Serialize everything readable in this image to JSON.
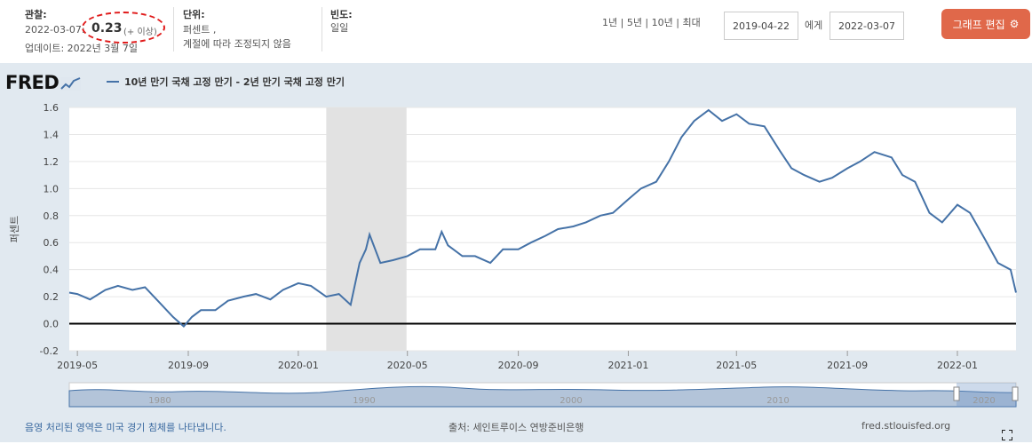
{
  "header": {
    "obs_label": "관찰:",
    "obs_date": "2022-03-07:",
    "obs_value": "0.23",
    "obs_change": "(+ 이상)",
    "updated": "업데이트: 2022년 3월 7일",
    "units_label": "단위:",
    "units_line1": "퍼센트 ,",
    "units_line2": "계절에 따라 조정되지 않음",
    "freq_label": "빈도:",
    "freq_value": "일일",
    "ranges": "1년 | 5년 | 10년 | 최대",
    "start_date": "2019-04-22",
    "to_label": "에게",
    "end_date": "2022-03-07",
    "edit_button": "그래프 편집"
  },
  "brand": "FRED",
  "footer": {
    "recession_note": "음영 처리된 영역은 미국 경기 침체를 나타냅니다.",
    "source": "출처: 세인트루이스 연방준비은행",
    "site": "fred.stlouisfed.org"
  },
  "colors": {
    "series": "#4572a7",
    "edit_button": "#e0684a",
    "recession": "#e2e2e2",
    "background": "#e1e9f0"
  },
  "chart_data": {
    "type": "line",
    "title": "",
    "series": [
      {
        "name": "10년 만기 국채 고정 만기 - 2년 만기 국채 고정 만기",
        "x": [
          "2019-04-22",
          "2019-05-01",
          "2019-05-15",
          "2019-06-01",
          "2019-06-15",
          "2019-07-01",
          "2019-07-15",
          "2019-08-01",
          "2019-08-15",
          "2019-08-27",
          "2019-09-05",
          "2019-09-15",
          "2019-10-01",
          "2019-10-15",
          "2019-11-01",
          "2019-11-15",
          "2019-12-01",
          "2019-12-15",
          "2020-01-01",
          "2020-01-15",
          "2020-02-01",
          "2020-02-15",
          "2020-02-28",
          "2020-03-09",
          "2020-03-16",
          "2020-03-20",
          "2020-04-01",
          "2020-04-15",
          "2020-05-01",
          "2020-05-15",
          "2020-06-01",
          "2020-06-08",
          "2020-06-15",
          "2020-07-01",
          "2020-07-15",
          "2020-08-01",
          "2020-08-15",
          "2020-09-01",
          "2020-09-15",
          "2020-10-01",
          "2020-10-15",
          "2020-11-01",
          "2020-11-15",
          "2020-12-01",
          "2020-12-15",
          "2021-01-01",
          "2021-01-15",
          "2021-02-01",
          "2021-02-15",
          "2021-03-01",
          "2021-03-15",
          "2021-03-31",
          "2021-04-15",
          "2021-05-01",
          "2021-05-15",
          "2021-06-01",
          "2021-06-18",
          "2021-07-01",
          "2021-07-15",
          "2021-08-01",
          "2021-08-15",
          "2021-09-01",
          "2021-09-15",
          "2021-10-01",
          "2021-10-20",
          "2021-11-01",
          "2021-11-15",
          "2021-12-01",
          "2021-12-15",
          "2022-01-01",
          "2022-01-15",
          "2022-02-01",
          "2022-02-15",
          "2022-03-01",
          "2022-03-07"
        ],
        "values": [
          0.23,
          0.22,
          0.18,
          0.25,
          0.28,
          0.25,
          0.27,
          0.15,
          0.05,
          -0.02,
          0.05,
          0.1,
          0.1,
          0.17,
          0.2,
          0.22,
          0.18,
          0.25,
          0.3,
          0.28,
          0.2,
          0.22,
          0.14,
          0.45,
          0.55,
          0.66,
          0.45,
          0.47,
          0.5,
          0.55,
          0.55,
          0.68,
          0.58,
          0.5,
          0.5,
          0.45,
          0.55,
          0.55,
          0.6,
          0.65,
          0.7,
          0.72,
          0.75,
          0.8,
          0.82,
          0.92,
          1.0,
          1.05,
          1.2,
          1.38,
          1.5,
          1.58,
          1.5,
          1.55,
          1.48,
          1.46,
          1.28,
          1.15,
          1.1,
          1.05,
          1.08,
          1.15,
          1.2,
          1.27,
          1.23,
          1.1,
          1.05,
          0.82,
          0.75,
          0.88,
          0.82,
          0.62,
          0.45,
          0.4,
          0.23
        ]
      }
    ],
    "ylabel": "퍼센트",
    "ylim": [
      -0.2,
      1.6
    ],
    "yticks": [
      "1.6",
      "1.4",
      "1.2",
      "1.0",
      "0.8",
      "0.6",
      "0.4",
      "0.2",
      "0.0",
      "-0.2"
    ],
    "xticks": [
      "2019-05",
      "2019-09",
      "2020-01",
      "2020-05",
      "2020-09",
      "2021-01",
      "2021-05",
      "2021-09",
      "2022-01"
    ],
    "xlim": [
      "2019-04-22",
      "2022-03-07"
    ],
    "recession": [
      "2020-02-01",
      "2020-04-30"
    ],
    "navigator_labels": [
      "1980",
      "1990",
      "2000",
      "2010",
      "2020"
    ],
    "grid": true,
    "legend_position": "top-left"
  }
}
